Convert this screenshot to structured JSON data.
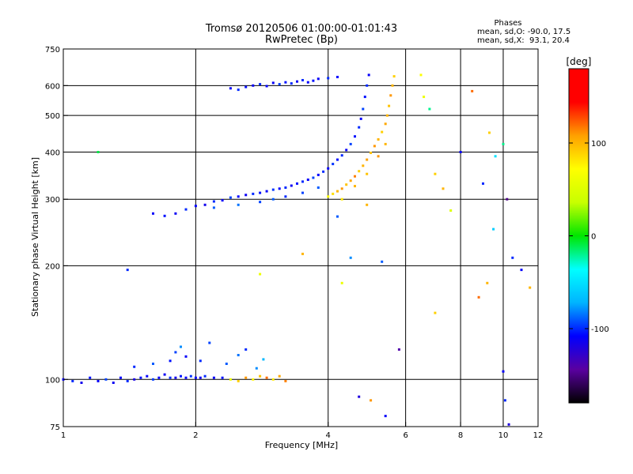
{
  "chart_data": {
    "type": "scatter",
    "title": "Tromsø 20120506 01:00:00-01:01:43",
    "subtitle": "RwPretec (Bp)",
    "xlabel": "Frequency [MHz]",
    "ylabel": "Stationary phase Virtual Height [km]",
    "x_scale": "log",
    "y_scale": "log",
    "xlim": [
      1,
      12
    ],
    "ylim": [
      75,
      750
    ],
    "x_ticks": [
      1,
      2,
      4,
      6,
      8,
      10,
      12
    ],
    "y_ticks": [
      75,
      100,
      200,
      300,
      400,
      500,
      600,
      750
    ],
    "grid": true,
    "phases_box": {
      "heading": "Phases",
      "line1": "mean, sd,O: -90.0, 17.5",
      "line2": "mean, sd,X:  93.1, 20.4"
    },
    "colorbar": {
      "label": "[deg]",
      "range": [
        -180,
        180
      ],
      "ticks": [
        100,
        0,
        -100
      ],
      "colors": [
        "#000000",
        "#5a00a0",
        "#0000ff",
        "#00b4ff",
        "#00ffff",
        "#00e600",
        "#c8ff00",
        "#ffff00",
        "#ffa000",
        "#ff0000",
        "#ff0000"
      ]
    },
    "series": [
      {
        "layer": "E",
        "points": [
          [
            1.0,
            100,
            -110
          ],
          [
            1.05,
            99,
            -100
          ],
          [
            1.1,
            98,
            -115
          ],
          [
            1.15,
            101,
            -105
          ],
          [
            1.2,
            99,
            -110
          ],
          [
            1.25,
            100,
            -95
          ],
          [
            1.3,
            98,
            -112
          ],
          [
            1.35,
            101,
            -108
          ],
          [
            1.4,
            99,
            -100
          ],
          [
            1.45,
            100,
            -118
          ],
          [
            1.5,
            101,
            -105
          ],
          [
            1.55,
            102,
            -110
          ],
          [
            1.6,
            100,
            -96
          ],
          [
            1.65,
            101,
            -108
          ],
          [
            1.7,
            103,
            -112
          ],
          [
            1.75,
            101,
            -100
          ],
          [
            1.8,
            101,
            -115
          ],
          [
            1.85,
            102,
            -104
          ],
          [
            1.9,
            101,
            -110
          ],
          [
            1.95,
            102,
            -98
          ],
          [
            2.0,
            101,
            -108
          ],
          [
            2.05,
            101,
            -113
          ],
          [
            2.1,
            102,
            -100
          ],
          [
            2.2,
            101,
            -110
          ],
          [
            2.3,
            101,
            -105
          ],
          [
            2.4,
            100,
            60
          ],
          [
            2.5,
            99,
            90
          ],
          [
            2.6,
            101,
            110
          ],
          [
            2.7,
            100,
            75
          ],
          [
            2.8,
            102,
            95
          ],
          [
            2.9,
            101,
            120
          ],
          [
            3.0,
            100,
            80
          ],
          [
            3.1,
            102,
            105
          ],
          [
            3.2,
            99,
            115
          ],
          [
            1.45,
            108,
            -100
          ],
          [
            1.6,
            110,
            -90
          ],
          [
            1.75,
            112,
            -105
          ],
          [
            1.8,
            118,
            -95
          ],
          [
            1.85,
            122,
            -80
          ],
          [
            1.9,
            115,
            -110
          ],
          [
            2.05,
            112,
            -100
          ],
          [
            2.15,
            125,
            -95
          ],
          [
            2.35,
            110,
            -90
          ],
          [
            2.5,
            116,
            -85
          ],
          [
            2.6,
            120,
            -100
          ],
          [
            2.75,
            107,
            -80
          ],
          [
            2.85,
            113,
            -70
          ]
        ]
      },
      {
        "layer": "F2-O",
        "points": [
          [
            1.6,
            275,
            -110
          ],
          [
            1.7,
            271,
            -105
          ],
          [
            1.8,
            275,
            -112
          ],
          [
            1.9,
            282,
            -100
          ],
          [
            2.0,
            288,
            -108
          ],
          [
            2.1,
            290,
            -115
          ],
          [
            2.2,
            296,
            -100
          ],
          [
            2.3,
            298,
            -110
          ],
          [
            2.4,
            303,
            -95
          ],
          [
            2.5,
            305,
            -108
          ],
          [
            2.6,
            308,
            -112
          ],
          [
            2.7,
            310,
            -100
          ],
          [
            2.8,
            312,
            -105
          ],
          [
            2.9,
            315,
            -110
          ],
          [
            3.0,
            318,
            -98
          ],
          [
            3.1,
            320,
            -108
          ],
          [
            3.2,
            322,
            -100
          ],
          [
            3.3,
            326,
            -112
          ],
          [
            3.4,
            330,
            -105
          ],
          [
            3.5,
            334,
            -100
          ],
          [
            3.6,
            338,
            -110
          ],
          [
            3.7,
            342,
            -95
          ],
          [
            3.8,
            348,
            -108
          ],
          [
            3.9,
            355,
            -100
          ],
          [
            4.0,
            362,
            -110
          ],
          [
            4.1,
            372,
            -98
          ],
          [
            4.2,
            382,
            -105
          ],
          [
            4.3,
            392,
            -100
          ],
          [
            4.4,
            405,
            -110
          ],
          [
            4.5,
            420,
            -95
          ],
          [
            4.6,
            440,
            -105
          ],
          [
            4.7,
            465,
            -100
          ],
          [
            4.75,
            490,
            -110
          ],
          [
            4.8,
            520,
            -95
          ],
          [
            4.85,
            560,
            -105
          ],
          [
            4.9,
            600,
            -100
          ],
          [
            4.95,
            640,
            -110
          ],
          [
            2.2,
            285,
            -90
          ],
          [
            2.5,
            290,
            -85
          ],
          [
            2.8,
            295,
            -95
          ],
          [
            3.0,
            300,
            -90
          ],
          [
            3.2,
            305,
            -100
          ],
          [
            3.5,
            312,
            -95
          ],
          [
            3.8,
            322,
            -90
          ]
        ]
      },
      {
        "layer": "F2-X",
        "points": [
          [
            4.0,
            305,
            70
          ],
          [
            4.1,
            310,
            85
          ],
          [
            4.2,
            315,
            100
          ],
          [
            4.3,
            320,
            110
          ],
          [
            4.4,
            328,
            95
          ],
          [
            4.5,
            336,
            105
          ],
          [
            4.6,
            345,
            115
          ],
          [
            4.7,
            356,
            90
          ],
          [
            4.8,
            368,
            100
          ],
          [
            4.9,
            382,
            108
          ],
          [
            5.0,
            398,
            95
          ],
          [
            5.1,
            415,
            110
          ],
          [
            5.2,
            432,
            100
          ],
          [
            5.3,
            452,
            90
          ],
          [
            5.4,
            475,
            105
          ],
          [
            5.45,
            500,
            100
          ],
          [
            5.5,
            530,
            95
          ],
          [
            5.55,
            565,
            110
          ],
          [
            5.6,
            600,
            100
          ],
          [
            5.65,
            635,
            90
          ],
          [
            4.3,
            300,
            80
          ],
          [
            4.6,
            325,
            100
          ],
          [
            4.9,
            350,
            95
          ],
          [
            5.2,
            390,
            110
          ],
          [
            5.4,
            420,
            100
          ]
        ]
      },
      {
        "layer": "F2-echo",
        "points": [
          [
            2.4,
            590,
            -110
          ],
          [
            2.5,
            585,
            -100
          ],
          [
            2.6,
            595,
            -105
          ],
          [
            2.7,
            600,
            -112
          ],
          [
            2.8,
            605,
            -100
          ],
          [
            2.9,
            598,
            -108
          ],
          [
            3.0,
            610,
            -110
          ],
          [
            3.1,
            605,
            -96
          ],
          [
            3.2,
            612,
            -105
          ],
          [
            3.3,
            608,
            -100
          ],
          [
            3.4,
            615,
            -112
          ],
          [
            3.5,
            620,
            -100
          ],
          [
            3.6,
            612,
            -108
          ],
          [
            3.7,
            618,
            -105
          ],
          [
            3.8,
            625,
            -110
          ],
          [
            4.0,
            628,
            -100
          ],
          [
            4.2,
            632,
            -108
          ]
        ]
      },
      {
        "layer": "scatter",
        "points": [
          [
            6.5,
            640,
            70
          ],
          [
            6.6,
            560,
            60
          ],
          [
            6.8,
            520,
            -20
          ],
          [
            7.0,
            350,
            90
          ],
          [
            7.3,
            320,
            100
          ],
          [
            7.6,
            280,
            50
          ],
          [
            8.0,
            400,
            -110
          ],
          [
            8.5,
            580,
            120
          ],
          [
            9.0,
            330,
            -100
          ],
          [
            9.3,
            450,
            90
          ],
          [
            9.6,
            390,
            -50
          ],
          [
            10.0,
            420,
            -20
          ],
          [
            10.2,
            300,
            -150
          ],
          [
            9.5,
            250,
            -60
          ],
          [
            10.5,
            210,
            -100
          ],
          [
            11.0,
            195,
            -110
          ],
          [
            11.5,
            175,
            100
          ],
          [
            8.8,
            165,
            120
          ],
          [
            9.2,
            180,
            100
          ],
          [
            10.0,
            105,
            -110
          ],
          [
            10.1,
            88,
            -100
          ],
          [
            10.3,
            76,
            -120
          ],
          [
            4.5,
            210,
            -80
          ],
          [
            5.3,
            205,
            -90
          ],
          [
            4.3,
            180,
            60
          ],
          [
            7.0,
            150,
            90
          ],
          [
            5.8,
            120,
            -140
          ],
          [
            4.7,
            90,
            -120
          ],
          [
            5.0,
            88,
            110
          ],
          [
            5.4,
            80,
            -110
          ],
          [
            3.5,
            215,
            100
          ],
          [
            2.8,
            190,
            60
          ],
          [
            1.4,
            195,
            -100
          ],
          [
            1.2,
            400,
            -10
          ],
          [
            4.2,
            270,
            -90
          ],
          [
            4.9,
            290,
            100
          ]
        ]
      }
    ]
  }
}
